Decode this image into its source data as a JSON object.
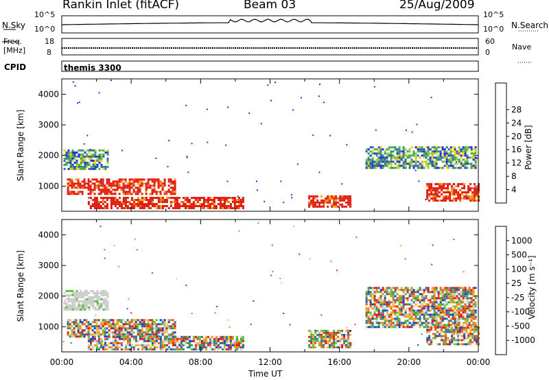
{
  "header": {
    "station": "Rankin Inlet (fitACF)",
    "beam": "Beam 03",
    "date": "25/Aug/2009"
  },
  "noise_panel": {
    "left_label": "N.Sky",
    "right_label": "N.Search",
    "left_ticks": [
      "10^5",
      "10^0"
    ],
    "right_ticks": [
      "10^5",
      "10^0"
    ]
  },
  "freq_panel": {
    "left_label_1": "Freq.",
    "left_label_2": "[MHz]",
    "right_label": "Nave",
    "left_ticks": [
      "18",
      "8"
    ],
    "right_ticks": [
      "60",
      "0"
    ]
  },
  "cpid_panel": {
    "label": "CPID",
    "program": "themis 3300"
  },
  "chart_data": [
    {
      "type": "heatmap",
      "title": "Power",
      "ylabel": "Slant Range [km]",
      "xlabel": "",
      "yticks": [
        "1000",
        "2000",
        "3000",
        "4000"
      ],
      "ylim": [
        180,
        4500
      ],
      "xlim": [
        0,
        24
      ],
      "colorbar_label": "Power [dB]",
      "colorbar_ticks": [
        "4",
        "8",
        "12",
        "16",
        "20",
        "24",
        "28"
      ],
      "colorbar_colors": [
        "#1f2dd8",
        "#2a62b0",
        "#3b8f6f",
        "#47b347",
        "#9ecb3a",
        "#f0cf1d",
        "#f4a11a",
        "#ef6a14",
        "#e21b10"
      ],
      "regions_hours_km": [
        {
          "t0": 0.1,
          "t1": 2.6,
          "r0": 1550,
          "r1": 2200,
          "level": "mixed-green"
        },
        {
          "t0": 0.3,
          "t1": 6.5,
          "r0": 750,
          "r1": 1250,
          "level": "high-red"
        },
        {
          "t0": 1.5,
          "t1": 10.5,
          "r0": 250,
          "r1": 650,
          "level": "high-red"
        },
        {
          "t0": 14.2,
          "t1": 16.6,
          "r0": 300,
          "r1": 700,
          "level": "high-red"
        },
        {
          "t0": 17.5,
          "t1": 23.9,
          "r0": 1600,
          "r1": 2300,
          "level": "mixed-green"
        },
        {
          "t0": 21.0,
          "t1": 24.0,
          "r0": 550,
          "r1": 1100,
          "level": "high-red"
        }
      ]
    },
    {
      "type": "heatmap",
      "title": "Velocity",
      "ylabel": "Slant Range [km]",
      "xlabel": "Time UT",
      "yticks": [
        "1000",
        "2000",
        "3000",
        "4000"
      ],
      "ylim": [
        180,
        4500
      ],
      "xlim": [
        0,
        24
      ],
      "xticks": [
        "00:00",
        "04:00",
        "08:00",
        "12:00",
        "16:00",
        "20:00",
        "00:00"
      ],
      "colorbar_label": "Velocity [m s⁻¹]",
      "colorbar_ticks": [
        "1000",
        "500",
        "100",
        "25",
        "-25",
        "-100",
        "-500",
        "-1000"
      ],
      "colorbar_colors": [
        "#1f3fc4",
        "#2a6fa8",
        "#3c8f5a",
        "#5bbf3a",
        "#cccccc",
        "#f4b51c",
        "#f08a18",
        "#ea5a14",
        "#e21b10"
      ],
      "regions_hours_km": [
        {
          "t0": 0.1,
          "t1": 2.6,
          "r0": 1550,
          "r1": 2200,
          "level": "grey"
        },
        {
          "t0": 0.3,
          "t1": 6.5,
          "r0": 650,
          "r1": 1250,
          "level": "mixed"
        },
        {
          "t0": 1.5,
          "t1": 10.5,
          "r0": 250,
          "r1": 700,
          "level": "mixed"
        },
        {
          "t0": 14.2,
          "t1": 16.6,
          "r0": 300,
          "r1": 900,
          "level": "mixed"
        },
        {
          "t0": 17.5,
          "t1": 23.9,
          "r0": 1000,
          "r1": 2300,
          "level": "mixed"
        },
        {
          "t0": 21.0,
          "t1": 24.0,
          "r0": 400,
          "r1": 1000,
          "level": "mixed"
        }
      ]
    }
  ]
}
